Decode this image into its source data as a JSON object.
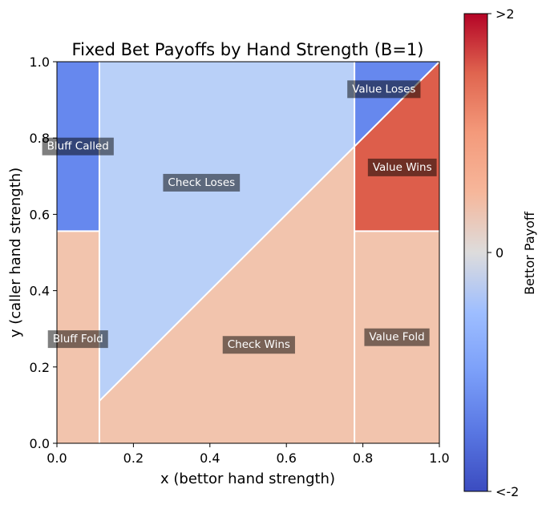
{
  "chart_data": {
    "type": "heatmap",
    "title": "Fixed Bet Payoffs by Hand Strength (B=1)",
    "xlabel": "x (bettor hand strength)",
    "ylabel": "y (caller hand strength)",
    "xlim": [
      0,
      1
    ],
    "ylim": [
      0,
      1
    ],
    "xticks": [
      "0.0",
      "0.2",
      "0.4",
      "0.6",
      "0.8",
      "1.0"
    ],
    "yticks": [
      "0.0",
      "0.2",
      "0.4",
      "0.6",
      "0.8",
      "1.0"
    ],
    "grid": false,
    "thresholds": {
      "bluff_x": 0.111,
      "value_x": 0.778,
      "call_y": 0.556
    },
    "regions": [
      {
        "name": "Bluff Called",
        "payoff": -2,
        "color": "#6688ee",
        "points": [
          [
            0,
            0.556
          ],
          [
            0.111,
            0.556
          ],
          [
            0.111,
            1
          ],
          [
            0,
            1
          ]
        ],
        "label_pos": [
          0.055,
          0.78
        ]
      },
      {
        "name": "Bluff Fold",
        "payoff": 1,
        "color": "#f2c4ad",
        "points": [
          [
            0,
            0
          ],
          [
            0.111,
            0
          ],
          [
            0.111,
            0.556
          ],
          [
            0,
            0.556
          ]
        ],
        "label_pos": [
          0.055,
          0.275
        ]
      },
      {
        "name": "Check Loses",
        "payoff": -1,
        "color": "#b9d0f8",
        "points": [
          [
            0.111,
            0.111
          ],
          [
            0.778,
            0.778
          ],
          [
            0.778,
            1
          ],
          [
            0.111,
            1
          ]
        ],
        "label_pos": [
          0.378,
          0.685
        ]
      },
      {
        "name": "Check Wins",
        "payoff": 1,
        "color": "#f2c4ad",
        "points": [
          [
            0.111,
            0
          ],
          [
            0.778,
            0
          ],
          [
            0.778,
            0.778
          ],
          [
            0.111,
            0.111
          ]
        ],
        "label_pos": [
          0.528,
          0.26
        ]
      },
      {
        "name": "Value Loses",
        "payoff": -2,
        "color": "#6688ee",
        "points": [
          [
            0.778,
            0.778
          ],
          [
            1,
            1
          ],
          [
            0.778,
            1
          ]
        ],
        "label_pos": [
          0.855,
          0.93
        ]
      },
      {
        "name": "Value Wins",
        "payoff": 2,
        "color": "#dd5e4b",
        "points": [
          [
            0.778,
            0.556
          ],
          [
            1,
            0.556
          ],
          [
            1,
            1
          ],
          [
            0.778,
            0.778
          ]
        ],
        "label_pos": [
          0.903,
          0.725
        ]
      },
      {
        "name": "Value Fold",
        "payoff": 1,
        "color": "#f2c4ad",
        "points": [
          [
            0.778,
            0
          ],
          [
            1,
            0
          ],
          [
            1,
            0.556
          ],
          [
            0.778,
            0.556
          ]
        ],
        "label_pos": [
          0.889,
          0.28
        ]
      }
    ],
    "colorbar": {
      "label": "Bettor Payoff",
      "colormap": "coolwarm",
      "min": -2,
      "max": 2,
      "ticks": [
        "<-2",
        "0",
        ">2"
      ]
    }
  }
}
